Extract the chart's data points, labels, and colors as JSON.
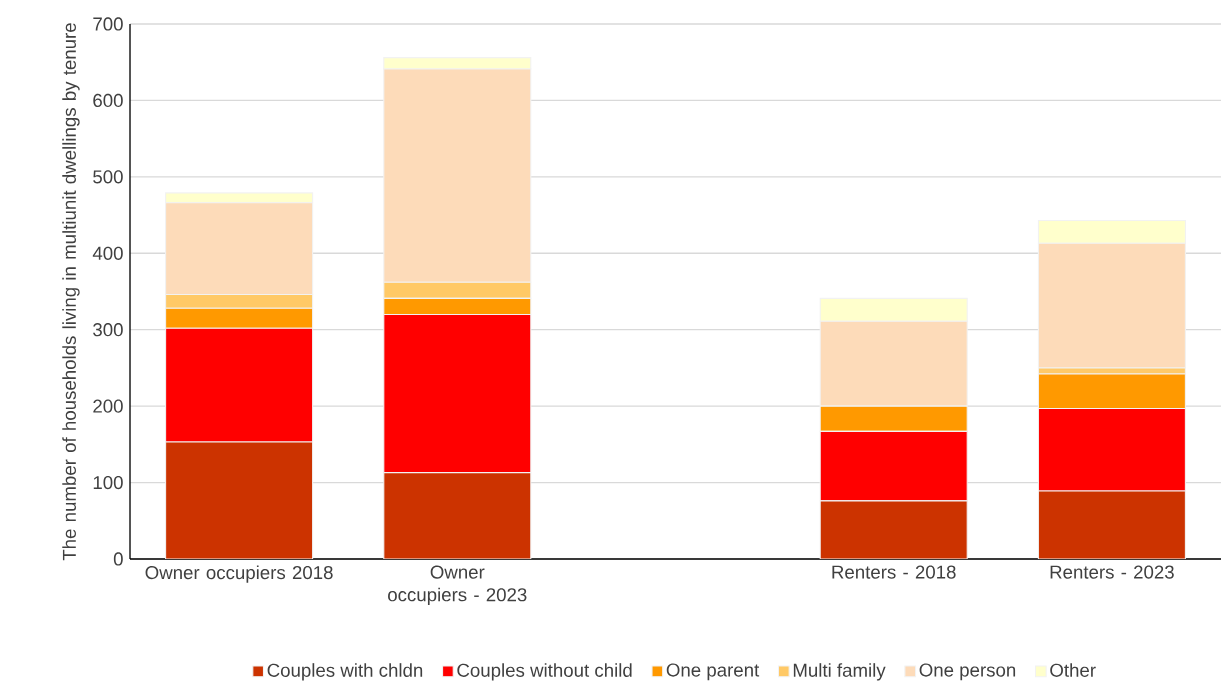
{
  "chart_data": {
    "type": "bar",
    "stacked": true,
    "ylabel": "The number of households living in multiunit dwellings by tenure",
    "categories": [
      "Owner occupiers 2018",
      "Owner occupiers - 2023",
      null,
      "Renters - 2018",
      "Renters - 2023"
    ],
    "series": [
      {
        "name": "Couples with chldn",
        "color": "#cc3300",
        "values": [
          153,
          113,
          null,
          76,
          89
        ]
      },
      {
        "name": "Couples without child",
        "color": "#ff0000",
        "values": [
          149,
          207,
          null,
          91,
          108
        ]
      },
      {
        "name": "One parent",
        "color": "#ff9900",
        "values": [
          26,
          21,
          null,
          33,
          45
        ]
      },
      {
        "name": "Multi family",
        "color": "#ffc966",
        "values": [
          18,
          21,
          null,
          0,
          8
        ]
      },
      {
        "name": "One person",
        "color": "#fddbb9",
        "values": [
          120,
          279,
          null,
          111,
          163
        ]
      },
      {
        "name": "Other",
        "color": "#ffffcc",
        "values": [
          13,
          15,
          null,
          30,
          30
        ]
      }
    ],
    "ylim": [
      0,
      700
    ],
    "yticks": [
      0,
      100,
      200,
      300,
      400,
      500,
      600,
      700
    ],
    "grid": "y",
    "legend": "bottom"
  }
}
